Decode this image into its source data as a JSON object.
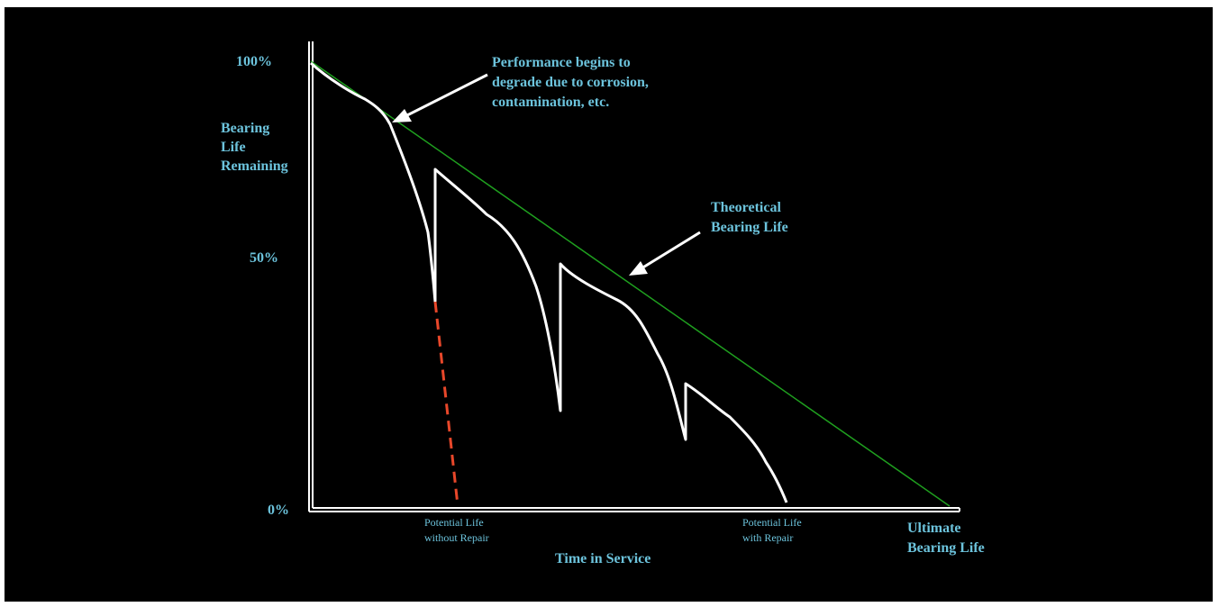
{
  "axes": {
    "y_labels": [
      "100%",
      "50%",
      "0%"
    ],
    "y_title": [
      "Bearing",
      "Life",
      "Remaining"
    ],
    "x_title": "Time in Service"
  },
  "annotations": {
    "degrade": [
      "Performance begins to",
      "degrade due to corrosion,",
      "contamination, etc."
    ],
    "theoretical": [
      "Theoretical",
      "Bearing Life"
    ],
    "without_repair": [
      "Potential Life",
      "without Repair"
    ],
    "with_repair": [
      "Potential Life",
      "with Repair"
    ],
    "ultimate": [
      "Ultimate",
      "Bearing Life"
    ]
  },
  "colors": {
    "background": "#000000",
    "label": "#6cc3dc",
    "axis": "#ffffff",
    "theoretical_line": "#1fa01f",
    "no_repair_dash": "#e8472a"
  }
}
